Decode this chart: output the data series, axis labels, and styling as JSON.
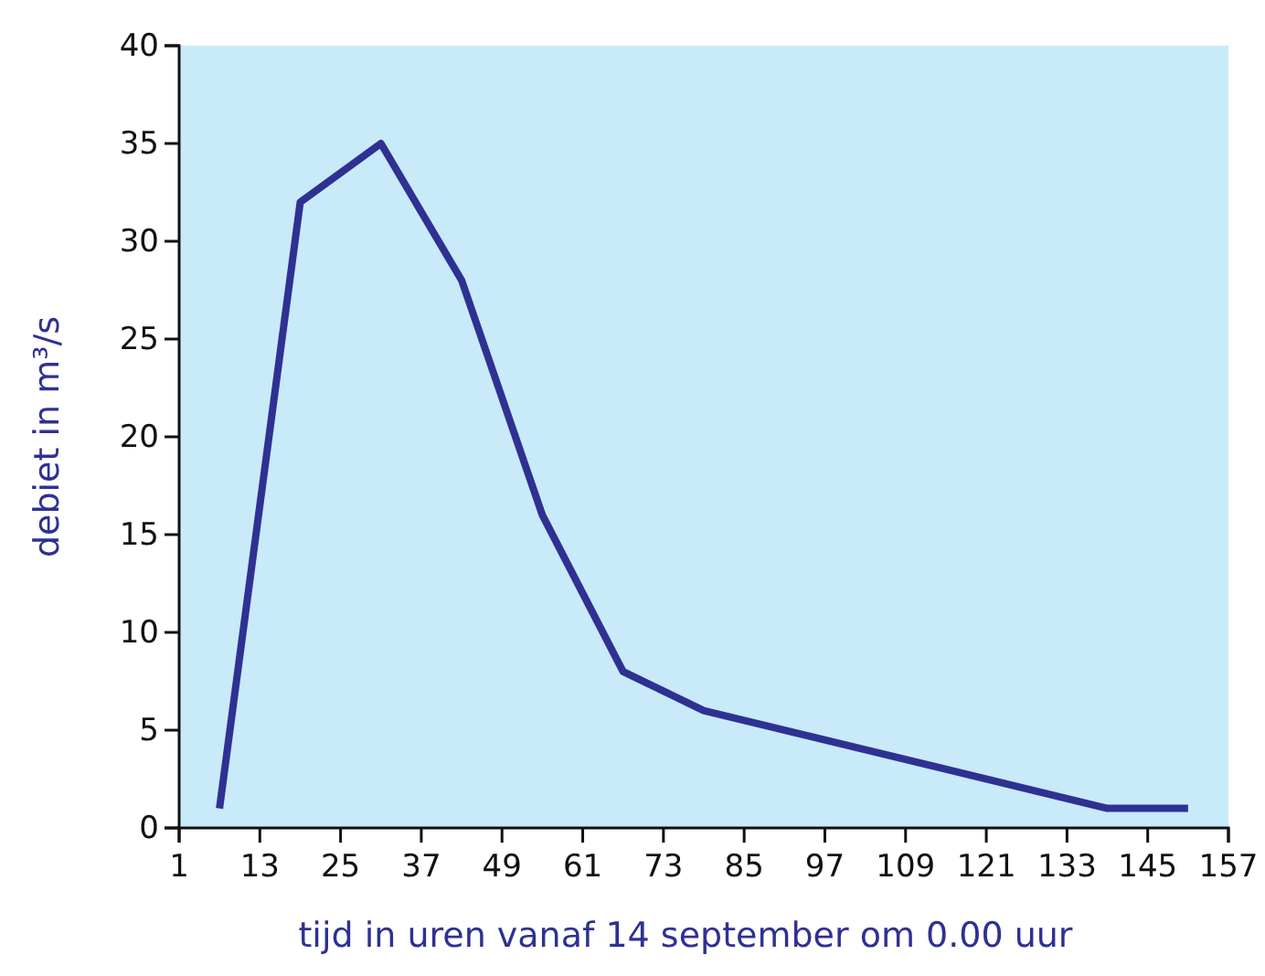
{
  "chart_data": {
    "type": "line",
    "xlabel": "tijd in uren vanaf 14 september om 0.00 uur",
    "ylabel": "debiet in m³/s",
    "x": [
      7,
      19,
      31,
      43,
      55,
      67,
      79,
      139,
      151
    ],
    "series": [
      {
        "color": "#2e3192",
        "values": [
          1,
          32,
          35,
          28,
          16,
          8,
          6,
          1,
          1
        ]
      }
    ],
    "xlim": [
      1,
      157
    ],
    "xticks": [
      1,
      13,
      25,
      37,
      49,
      61,
      73,
      85,
      97,
      109,
      121,
      133,
      145,
      157
    ],
    "ylim": [
      0,
      40
    ],
    "yticks": [
      0,
      5,
      10,
      15,
      20,
      25,
      30,
      35,
      40
    ],
    "grid": false,
    "marker": "none",
    "line_style": "solid"
  }
}
